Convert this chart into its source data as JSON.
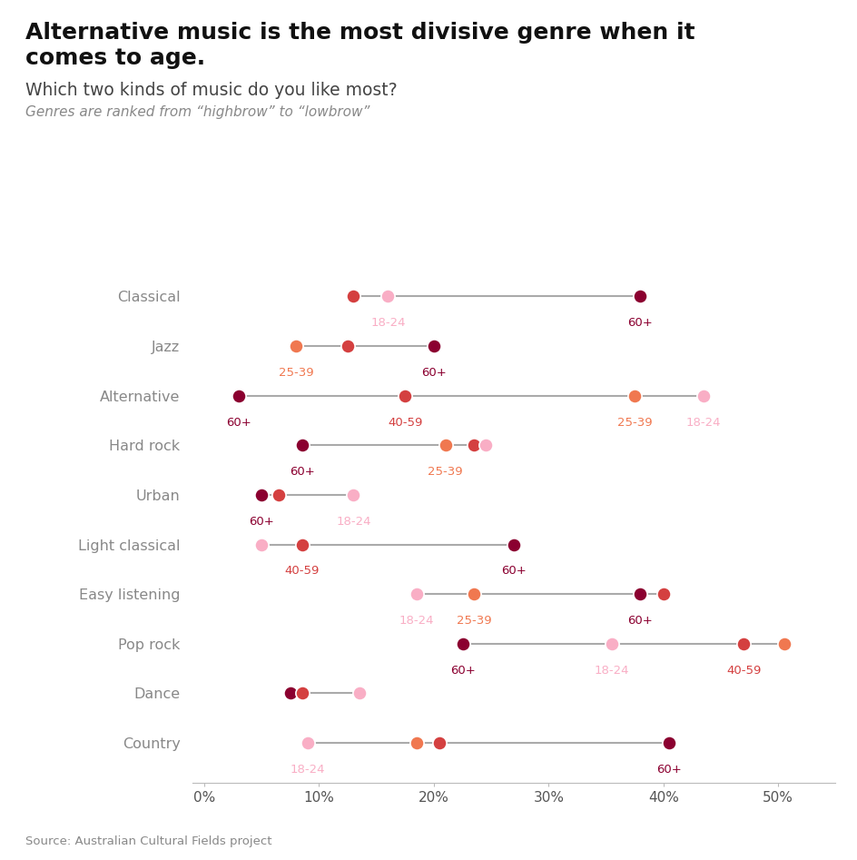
{
  "title_line1": "Alternative music is the most divisive genre when it",
  "title_line2": "comes to age.",
  "subtitle": "Which two kinds of music do you like most?",
  "subtitle2": "Genres are ranked from “highbrow” to “lowbrow”",
  "source": "Source: Australian Cultural Fields project",
  "genres": [
    "Classical",
    "Jazz",
    "Alternative",
    "Hard rock",
    "Urban",
    "Light classical",
    "Easy listening",
    "Pop rock",
    "Dance",
    "Country"
  ],
  "age_colors": {
    "18-24": "#f9aec5",
    "25-39": "#f07850",
    "40-59": "#d44040",
    "60+": "#8b0030"
  },
  "data": {
    "Classical": [
      {
        "age": "40-59",
        "value": 13.0
      },
      {
        "age": "18-24",
        "value": 16.0
      },
      {
        "age": "60+",
        "value": 38.0
      }
    ],
    "Jazz": [
      {
        "age": "25-39",
        "value": 8.0
      },
      {
        "age": "40-59",
        "value": 12.5
      },
      {
        "age": "60+",
        "value": 20.0
      }
    ],
    "Alternative": [
      {
        "age": "60+",
        "value": 3.0
      },
      {
        "age": "40-59",
        "value": 17.5
      },
      {
        "age": "25-39",
        "value": 37.5
      },
      {
        "age": "18-24",
        "value": 43.5
      }
    ],
    "Hard rock": [
      {
        "age": "60+",
        "value": 8.5
      },
      {
        "age": "25-39",
        "value": 21.0
      },
      {
        "age": "40-59",
        "value": 23.5
      },
      {
        "age": "18-24",
        "value": 24.5
      }
    ],
    "Urban": [
      {
        "age": "60+",
        "value": 5.0
      },
      {
        "age": "40-59",
        "value": 6.5
      },
      {
        "age": "18-24",
        "value": 13.0
      }
    ],
    "Light classical": [
      {
        "age": "18-24",
        "value": 5.0
      },
      {
        "age": "40-59",
        "value": 8.5
      },
      {
        "age": "60+",
        "value": 27.0
      }
    ],
    "Easy listening": [
      {
        "age": "18-24",
        "value": 18.5
      },
      {
        "age": "25-39",
        "value": 23.5
      },
      {
        "age": "60+",
        "value": 38.0
      },
      {
        "age": "40-59",
        "value": 40.0
      }
    ],
    "Pop rock": [
      {
        "age": "60+",
        "value": 22.5
      },
      {
        "age": "18-24",
        "value": 35.5
      },
      {
        "age": "40-59",
        "value": 47.0
      },
      {
        "age": "25-39",
        "value": 50.5
      }
    ],
    "Dance": [
      {
        "age": "60+",
        "value": 7.5
      },
      {
        "age": "40-59",
        "value": 8.5
      },
      {
        "age": "18-24",
        "value": 13.5
      }
    ],
    "Country": [
      {
        "age": "18-24",
        "value": 9.0
      },
      {
        "age": "25-39",
        "value": 18.5
      },
      {
        "age": "40-59",
        "value": 20.5
      },
      {
        "age": "60+",
        "value": 40.5
      }
    ]
  },
  "xlim": [
    -1,
    55
  ],
  "xticks": [
    0,
    10,
    20,
    30,
    40,
    50
  ],
  "xticklabels": [
    "0%",
    "10%",
    "20%",
    "30%",
    "40%",
    "50%"
  ],
  "label_show": {
    "Classical": [
      "18-24",
      "60+"
    ],
    "Jazz": [
      "25-39",
      "60+"
    ],
    "Alternative": [
      "60+",
      "40-59",
      "25-39",
      "18-24"
    ],
    "Hard rock": [
      "60+",
      "25-39"
    ],
    "Urban": [
      "60+",
      "18-24"
    ],
    "Light classical": [
      "40-59",
      "60+"
    ],
    "Easy listening": [
      "18-24",
      "25-39",
      "60+"
    ],
    "Pop rock": [
      "60+",
      "18-24",
      "40-59"
    ],
    "Dance": [],
    "Country": [
      "18-24",
      "60+"
    ]
  },
  "dot_size": 120
}
